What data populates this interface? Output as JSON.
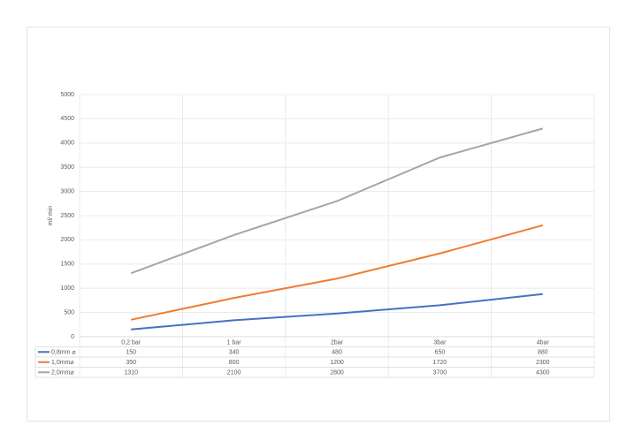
{
  "chart_data": {
    "type": "line",
    "y_label": "ml/ min",
    "categories": [
      "0,2 bar",
      "1 bar",
      "2bar",
      "3bar",
      "4bar"
    ],
    "series": [
      {
        "name": "0,8mm ⌀",
        "color": "#4472c4",
        "values": [
          150,
          340,
          480,
          650,
          880
        ]
      },
      {
        "name": "1,0mm⌀",
        "color": "#ed7d31",
        "values": [
          350,
          800,
          1200,
          1720,
          2300
        ]
      },
      {
        "name": "2,0mm⌀",
        "color": "#a5a5a5",
        "values": [
          1310,
          2100,
          2800,
          3700,
          4300
        ]
      }
    ],
    "ylim": [
      0,
      5000
    ],
    "yticks": [
      0,
      500,
      1000,
      1500,
      2000,
      2500,
      3000,
      3500,
      4000,
      4500,
      5000
    ],
    "grid": true
  }
}
